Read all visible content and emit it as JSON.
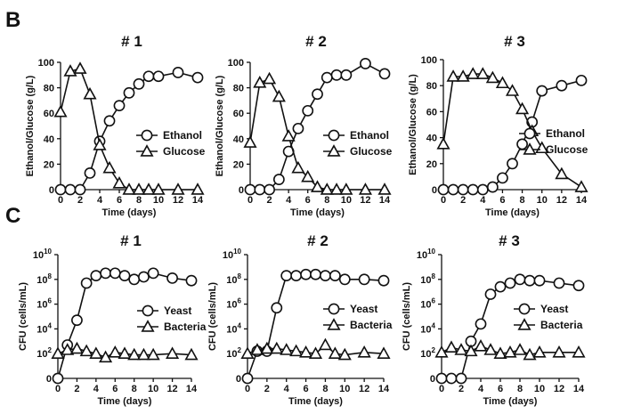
{
  "panel_labels": {
    "b": "B",
    "c": "C"
  },
  "chart_data": [
    {
      "panel": "B",
      "type": "line",
      "title": "# 1",
      "xlabel": "Time (days)",
      "ylabel": "Ethanol/Glucose (g/L)",
      "xlim": [
        0,
        14
      ],
      "ylim": [
        0,
        100
      ],
      "yscale": "linear",
      "xticks": [
        0,
        2,
        4,
        6,
        8,
        10,
        12,
        14
      ],
      "xtick_labels": [
        "0",
        "2",
        "4",
        "6",
        "8",
        "10",
        "12",
        "14"
      ],
      "yticks": [
        0,
        20,
        40,
        60,
        80,
        100
      ],
      "ytick_labels": [
        "0",
        "20",
        "40",
        "60",
        "80",
        "100"
      ],
      "legend_position": "bottom-right",
      "series": [
        {
          "name": "Ethanol",
          "marker": "circle",
          "x": [
            0,
            1,
            2,
            3,
            4,
            5,
            6,
            7,
            8,
            9,
            10,
            12,
            14
          ],
          "y": [
            0,
            0,
            0,
            13,
            38,
            54,
            66,
            76,
            83,
            89,
            89,
            92,
            88
          ]
        },
        {
          "name": "Glucose",
          "marker": "triangle",
          "x": [
            0,
            1,
            2,
            3,
            4,
            5,
            6,
            7,
            8,
            9,
            10,
            12,
            14
          ],
          "y": [
            61,
            93,
            95,
            75,
            35,
            17,
            5,
            0,
            0,
            0,
            0,
            0,
            0
          ]
        }
      ]
    },
    {
      "panel": "B",
      "type": "line",
      "title": "# 2",
      "xlabel": "Time (days)",
      "ylabel": "Ethanol/Glucose (g/L)",
      "xlim": [
        0,
        14
      ],
      "ylim": [
        0,
        100
      ],
      "yscale": "linear",
      "xticks": [
        0,
        2,
        4,
        6,
        8,
        10,
        12,
        14
      ],
      "xtick_labels": [
        "0",
        "2",
        "4",
        "6",
        "8",
        "10",
        "12",
        "14"
      ],
      "yticks": [
        0,
        20,
        40,
        60,
        80,
        100
      ],
      "ytick_labels": [
        "0",
        "20",
        "40",
        "60",
        "80",
        "100"
      ],
      "legend_position": "bottom-right",
      "series": [
        {
          "name": "Ethanol",
          "marker": "circle",
          "x": [
            0,
            1,
            2,
            3,
            4,
            5,
            6,
            7,
            8,
            9,
            10,
            12,
            14
          ],
          "y": [
            0,
            0,
            0,
            8,
            30,
            48,
            62,
            75,
            88,
            90,
            90,
            99,
            91
          ]
        },
        {
          "name": "Glucose",
          "marker": "triangle",
          "x": [
            0,
            1,
            2,
            3,
            4,
            5,
            6,
            7,
            8,
            9,
            10,
            12,
            14
          ],
          "y": [
            37,
            84,
            87,
            73,
            42,
            17,
            10,
            2,
            0,
            0,
            0,
            0,
            0
          ]
        }
      ]
    },
    {
      "panel": "B",
      "type": "line",
      "title": "# 3",
      "xlabel": "Time (days)",
      "ylabel": "Ethanol/Glucose (g/L)",
      "xlim": [
        0,
        14
      ],
      "ylim": [
        0,
        100
      ],
      "yscale": "linear",
      "xticks": [
        0,
        2,
        4,
        6,
        8,
        10,
        12,
        14
      ],
      "xtick_labels": [
        "0",
        "2",
        "4",
        "6",
        "8",
        "10",
        "12",
        "14"
      ],
      "yticks": [
        0,
        20,
        40,
        60,
        80,
        100
      ],
      "ytick_labels": [
        "0",
        "20",
        "40",
        "60",
        "80",
        "100"
      ],
      "legend_position": "bottom-right",
      "series": [
        {
          "name": "Ethanol",
          "marker": "circle",
          "x": [
            0,
            1,
            2,
            3,
            4,
            5,
            6,
            7,
            8,
            9,
            10,
            12,
            14
          ],
          "y": [
            0,
            0,
            0,
            0,
            0,
            2,
            9,
            20,
            35,
            52,
            76,
            80,
            84
          ]
        },
        {
          "name": "Glucose",
          "marker": "triangle",
          "x": [
            0,
            1,
            2,
            3,
            4,
            5,
            6,
            7,
            8,
            9,
            10,
            12,
            14
          ],
          "y": [
            35,
            87,
            87,
            89,
            89,
            86,
            82,
            76,
            62,
            45,
            32,
            12,
            2
          ]
        }
      ]
    },
    {
      "panel": "C",
      "type": "line",
      "title": "# 1",
      "xlabel": "Time (days)",
      "ylabel": "CFU (cells/mL)",
      "xlim": [
        0,
        14
      ],
      "ylim": [
        0,
        10
      ],
      "yscale": "log10",
      "xticks": [
        0,
        2,
        4,
        6,
        8,
        10,
        12,
        14
      ],
      "xtick_labels": [
        "0",
        "2",
        "4",
        "6",
        "8",
        "10",
        "12",
        "14"
      ],
      "yticks": [
        0,
        2,
        4,
        6,
        8,
        10
      ],
      "ytick_labels": [
        {
          "base": "0",
          "exp": ""
        },
        {
          "base": "10",
          "exp": "2"
        },
        {
          "base": "10",
          "exp": "4"
        },
        {
          "base": "10",
          "exp": "6"
        },
        {
          "base": "10",
          "exp": "8"
        },
        {
          "base": "10",
          "exp": "10"
        }
      ],
      "legend_position": "center-right",
      "series": [
        {
          "name": "Yeast",
          "marker": "circle",
          "value_units": "log10 cells/mL",
          "x": [
            0,
            1,
            2,
            3,
            4,
            5,
            6,
            7,
            8,
            9,
            10,
            12,
            14
          ],
          "y": [
            0,
            2.7,
            4.7,
            7.7,
            8.3,
            8.5,
            8.5,
            8.3,
            8.0,
            8.2,
            8.5,
            8.1,
            7.9
          ]
        },
        {
          "name": "Bacteria",
          "marker": "triangle",
          "value_units": "log10 cells/mL",
          "x": [
            0,
            1,
            2,
            3,
            4,
            5,
            6,
            7,
            8,
            9,
            10,
            12,
            14
          ],
          "y": [
            2.0,
            2.3,
            2.4,
            2.2,
            2.0,
            1.7,
            2.1,
            2.0,
            1.9,
            1.9,
            1.9,
            2.0,
            1.9
          ]
        }
      ]
    },
    {
      "panel": "C",
      "type": "line",
      "title": "# 2",
      "xlabel": "Time (days)",
      "ylabel": "CFU (cells/mL)",
      "xlim": [
        0,
        14
      ],
      "ylim": [
        0,
        10
      ],
      "yscale": "log10",
      "xticks": [
        0,
        2,
        4,
        6,
        8,
        10,
        12,
        14
      ],
      "xtick_labels": [
        "0",
        "2",
        "4",
        "6",
        "8",
        "10",
        "12",
        "14"
      ],
      "yticks": [
        0,
        2,
        4,
        6,
        8,
        10
      ],
      "ytick_labels": [
        {
          "base": "0",
          "exp": ""
        },
        {
          "base": "10",
          "exp": "2"
        },
        {
          "base": "10",
          "exp": "4"
        },
        {
          "base": "10",
          "exp": "6"
        },
        {
          "base": "10",
          "exp": "8"
        },
        {
          "base": "10",
          "exp": "10"
        }
      ],
      "legend_position": "center-right",
      "series": [
        {
          "name": "Yeast",
          "marker": "circle",
          "value_units": "log10 cells/mL",
          "x": [
            0,
            1,
            2,
            3,
            4,
            5,
            6,
            7,
            8,
            9,
            10,
            12,
            14
          ],
          "y": [
            0,
            2.2,
            2.2,
            5.7,
            8.3,
            8.3,
            8.4,
            8.4,
            8.3,
            8.3,
            8.0,
            8.0,
            7.9
          ]
        },
        {
          "name": "Bacteria",
          "marker": "triangle",
          "value_units": "log10 cells/mL",
          "x": [
            0,
            1,
            2,
            3,
            4,
            5,
            6,
            7,
            8,
            9,
            10,
            12,
            14
          ],
          "y": [
            2.0,
            2.3,
            2.4,
            2.4,
            2.3,
            2.2,
            2.1,
            2.0,
            2.7,
            2.0,
            1.9,
            2.1,
            2.0
          ]
        }
      ]
    },
    {
      "panel": "C",
      "type": "line",
      "title": "# 3",
      "xlabel": "Time (days)",
      "ylabel": "CFU (cells/mL)",
      "xlim": [
        0,
        14
      ],
      "ylim": [
        0,
        10
      ],
      "yscale": "log10",
      "xticks": [
        0,
        2,
        4,
        6,
        8,
        10,
        12,
        14
      ],
      "xtick_labels": [
        "0",
        "2",
        "4",
        "6",
        "8",
        "10",
        "12",
        "14"
      ],
      "yticks": [
        0,
        2,
        4,
        6,
        8,
        10
      ],
      "ytick_labels": [
        {
          "base": "0",
          "exp": ""
        },
        {
          "base": "10",
          "exp": "2"
        },
        {
          "base": "10",
          "exp": "4"
        },
        {
          "base": "10",
          "exp": "6"
        },
        {
          "base": "10",
          "exp": "8"
        },
        {
          "base": "10",
          "exp": "10"
        }
      ],
      "legend_position": "center-right",
      "series": [
        {
          "name": "Yeast",
          "marker": "circle",
          "value_units": "log10 cells/mL",
          "x": [
            0,
            1,
            2,
            3,
            4,
            5,
            6,
            7,
            8,
            9,
            10,
            12,
            14
          ],
          "y": [
            0,
            0,
            0,
            3.0,
            4.4,
            6.8,
            7.4,
            7.7,
            8.0,
            7.9,
            7.9,
            7.7,
            7.5
          ]
        },
        {
          "name": "Bacteria",
          "marker": "triangle",
          "value_units": "log10 cells/mL",
          "x": [
            0,
            1,
            2,
            3,
            4,
            5,
            6,
            7,
            8,
            9,
            10,
            12,
            14
          ],
          "y": [
            2.1,
            2.5,
            2.3,
            2.2,
            2.6,
            2.3,
            2.0,
            2.1,
            2.3,
            1.9,
            2.1,
            2.1,
            2.1
          ]
        }
      ]
    }
  ]
}
